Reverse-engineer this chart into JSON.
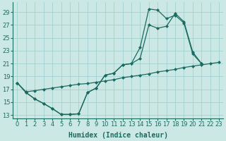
{
  "xlabel": "Humidex (Indice chaleur)",
  "background_color": "#cce8e4",
  "grid_color": "#99cccc",
  "line_color": "#1a6b60",
  "xlim": [
    -0.5,
    23.5
  ],
  "ylim": [
    12.5,
    30.5
  ],
  "xticks": [
    0,
    1,
    2,
    3,
    4,
    5,
    6,
    7,
    8,
    9,
    10,
    11,
    12,
    13,
    14,
    15,
    16,
    17,
    18,
    19,
    20,
    21,
    22,
    23
  ],
  "yticks": [
    13,
    15,
    17,
    19,
    21,
    23,
    25,
    27,
    29
  ],
  "curve1_x": [
    0,
    1,
    2,
    3,
    4,
    5,
    6,
    7,
    8,
    9,
    10,
    11,
    12,
    13,
    14,
    15,
    16,
    17,
    18,
    19,
    20,
    21
  ],
  "curve1_y": [
    18.0,
    16.5,
    15.5,
    14.8,
    14.0,
    13.1,
    13.1,
    13.2,
    16.5,
    17.2,
    19.2,
    19.5,
    20.8,
    21.0,
    23.5,
    29.5,
    29.3,
    28.0,
    28.5,
    27.3,
    22.5,
    21.0
  ],
  "curve2_x": [
    0,
    1,
    2,
    3,
    4,
    5,
    6,
    7,
    8,
    9,
    10,
    11,
    12,
    13,
    14,
    15,
    16,
    17,
    18,
    19,
    20,
    21
  ],
  "curve2_y": [
    18.0,
    16.5,
    15.5,
    14.8,
    14.0,
    13.1,
    13.1,
    13.2,
    16.5,
    17.2,
    19.2,
    19.5,
    20.8,
    21.0,
    21.8,
    27.0,
    26.5,
    26.8,
    28.8,
    27.5,
    22.8,
    21.0
  ],
  "curve3_x": [
    0,
    1,
    2,
    3,
    4,
    5,
    6,
    7,
    8,
    9,
    10,
    11,
    12,
    13,
    14,
    15,
    16,
    17,
    18,
    19,
    20,
    21,
    22,
    23
  ],
  "curve3_y": [
    18.0,
    16.6,
    16.8,
    17.0,
    17.2,
    17.4,
    17.6,
    17.8,
    17.9,
    18.1,
    18.3,
    18.5,
    18.8,
    19.0,
    19.2,
    19.4,
    19.7,
    19.9,
    20.1,
    20.4,
    20.6,
    20.8,
    21.0,
    21.2
  ],
  "marker": "D",
  "markersize": 2.0,
  "linewidth": 0.9,
  "fontsize_ticks": 6.0,
  "fontsize_label": 7.0
}
